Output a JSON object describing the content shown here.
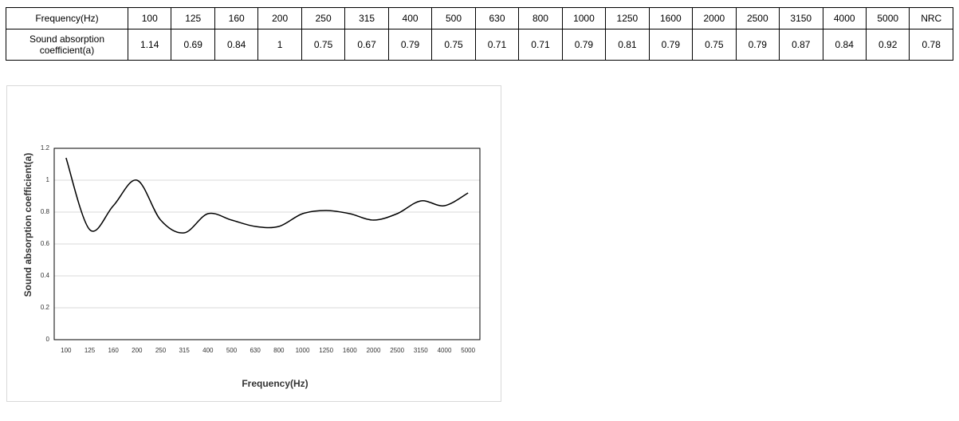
{
  "table": {
    "header": [
      "Frequency(Hz)",
      "100",
      "125",
      "160",
      "200",
      "250",
      "315",
      "400",
      "500",
      "630",
      "800",
      "1000",
      "1250",
      "1600",
      "2000",
      "2500",
      "3150",
      "4000",
      "5000",
      "NRC"
    ],
    "rows": [
      [
        "Sound absorption coefficient(a)",
        "1.14",
        "0.69",
        "0.84",
        "1",
        "0.75",
        "0.67",
        "0.79",
        "0.75",
        "0.71",
        "0.71",
        "0.79",
        "0.81",
        "0.79",
        "0.75",
        "0.79",
        "0.87",
        "0.84",
        "0.92",
        "0.78"
      ]
    ]
  },
  "chart_data": {
    "type": "line",
    "x_label": "Frequency(Hz)",
    "y_label": "Sound absorption coefficient(a)",
    "categories": [
      "100",
      "125",
      "160",
      "200",
      "250",
      "315",
      "400",
      "500",
      "630",
      "800",
      "1000",
      "1250",
      "1600",
      "2000",
      "2500",
      "3150",
      "4000",
      "5000"
    ],
    "values": [
      1.14,
      0.69,
      0.84,
      1,
      0.75,
      0.67,
      0.79,
      0.75,
      0.71,
      0.71,
      0.79,
      0.81,
      0.79,
      0.75,
      0.79,
      0.87,
      0.84,
      0.92
    ],
    "color": "#000000",
    "ylim": [
      0,
      1.2
    ],
    "yticks": [
      0,
      0.2,
      0.4,
      0.6,
      0.8,
      1,
      1.2
    ],
    "grid": true
  }
}
